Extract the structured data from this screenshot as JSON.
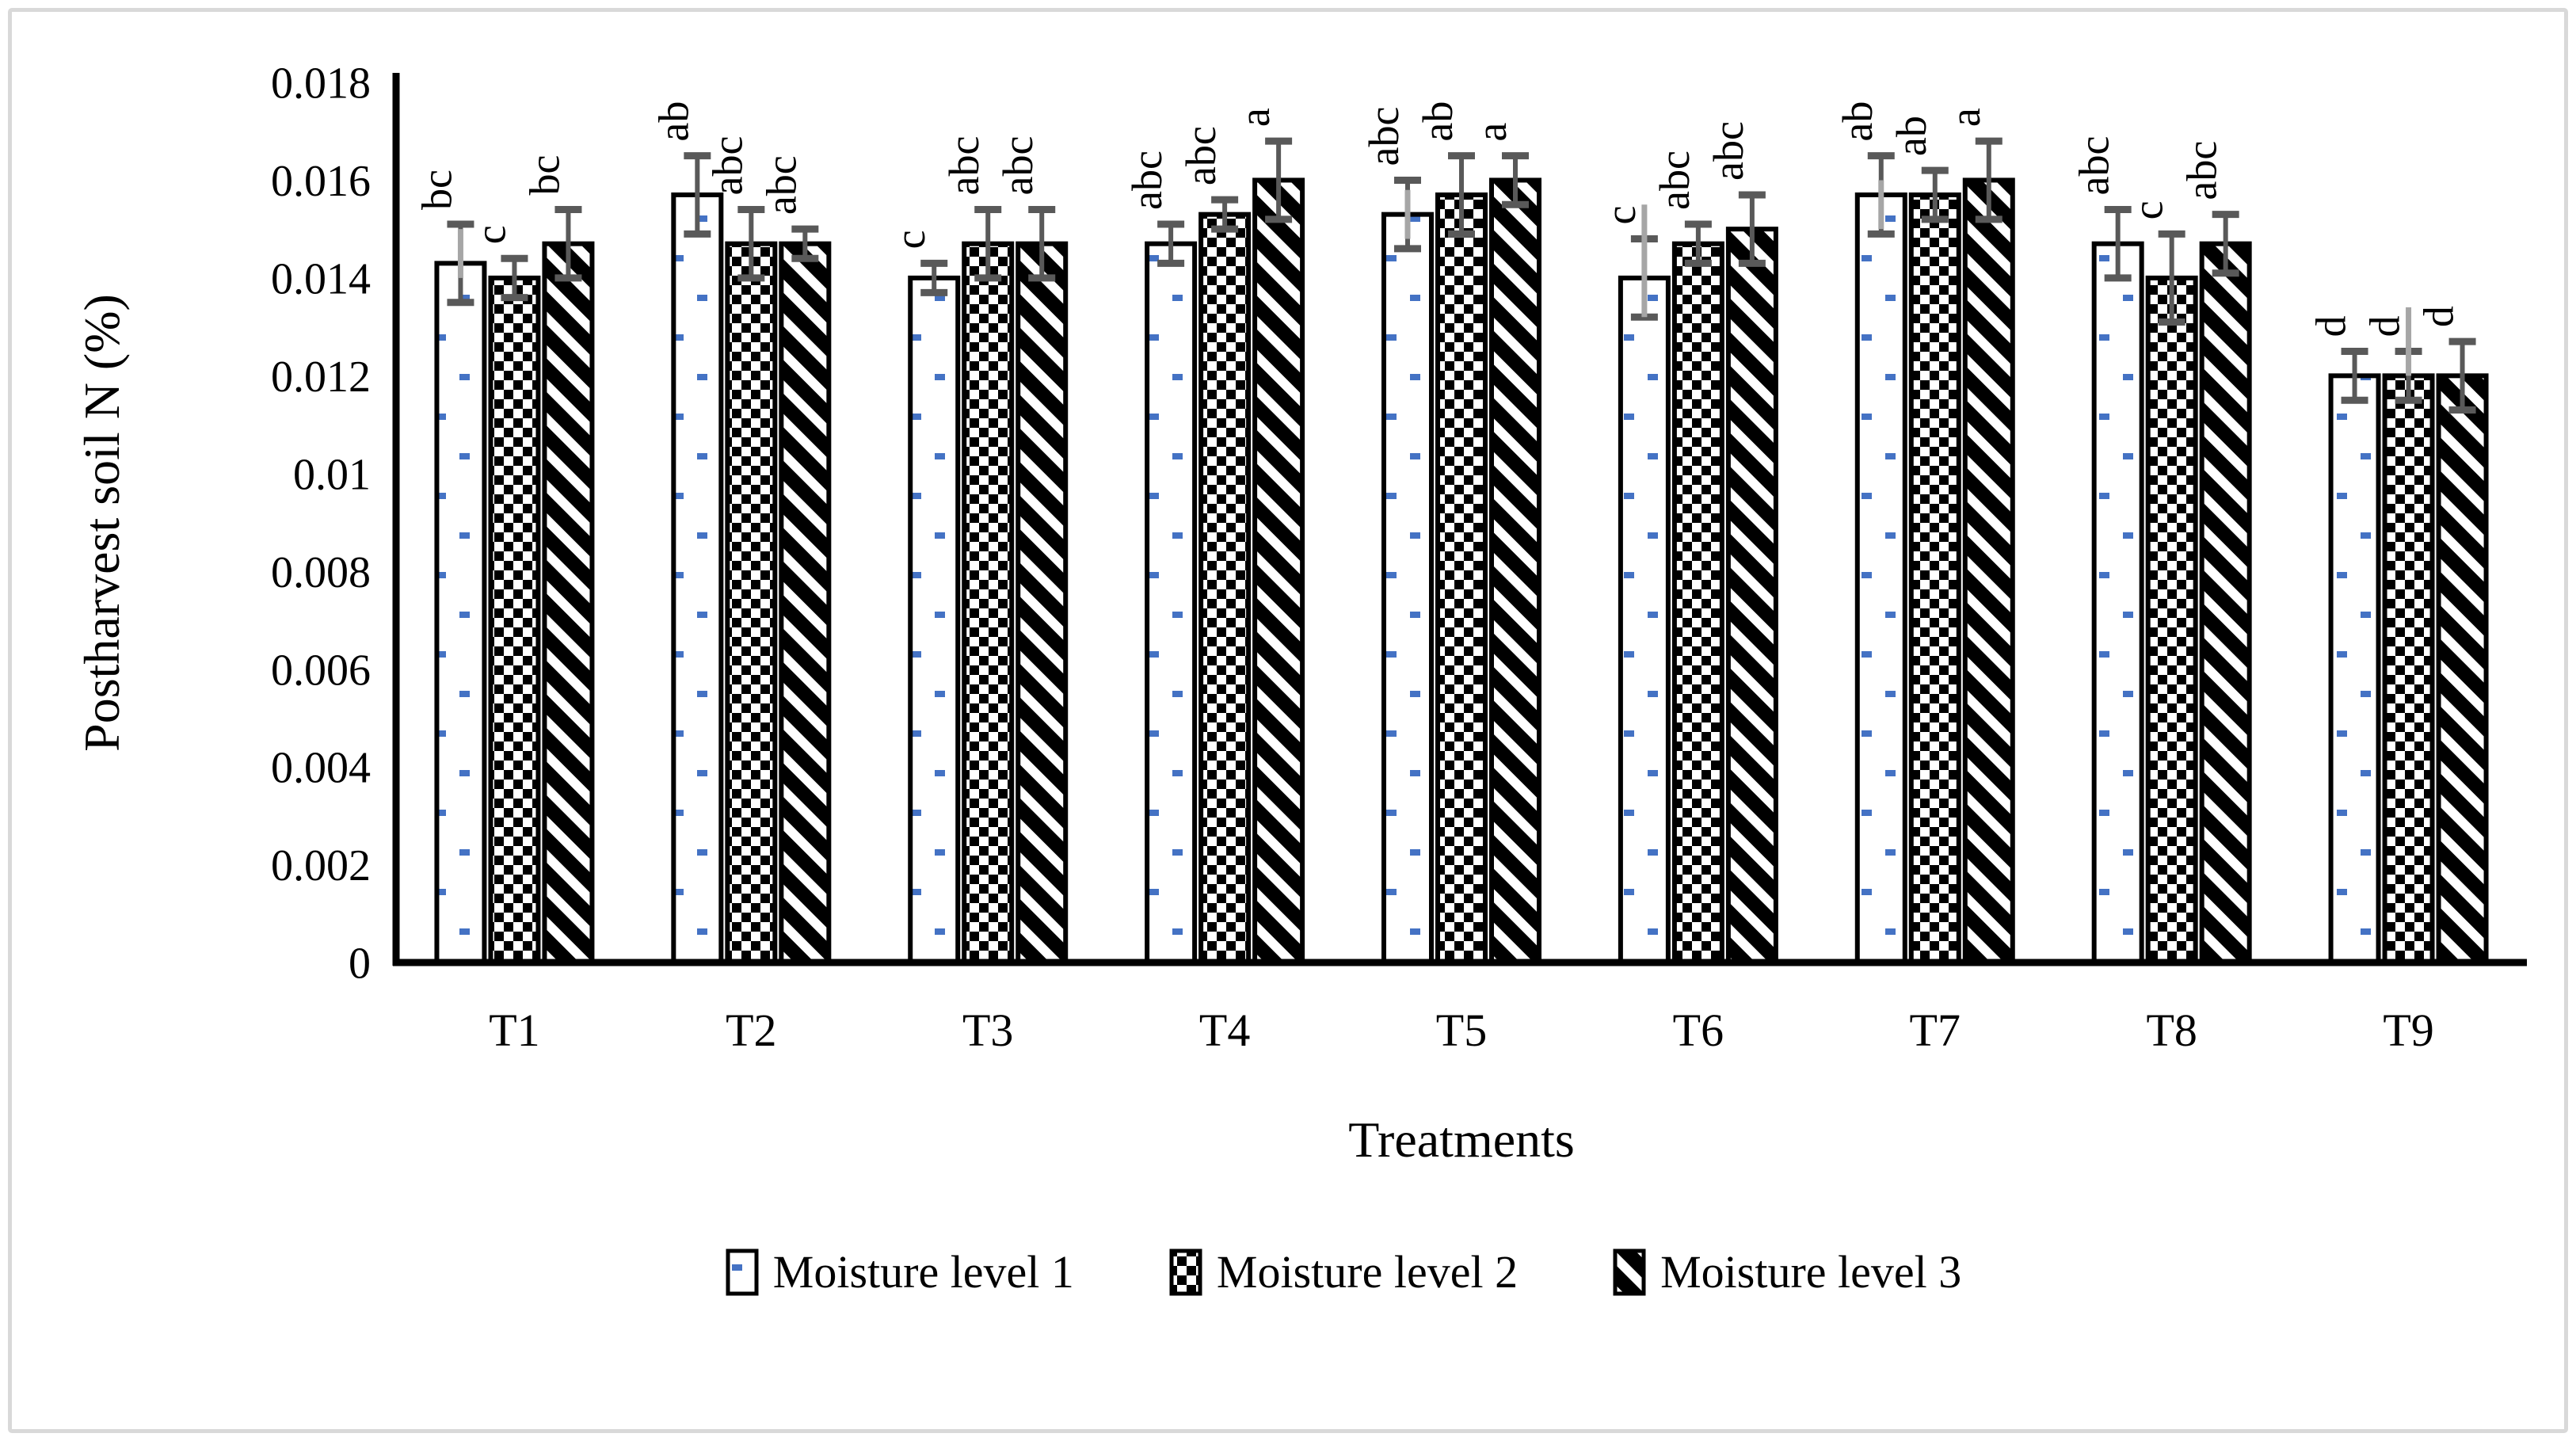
{
  "figure": {
    "background": "#ffffff",
    "border_color": "#d9d9d9"
  },
  "chart_data": {
    "type": "bar",
    "title": "",
    "ylabel": "Postharvest soil N (%)",
    "xlabel": "Treatments",
    "ylim": [
      0,
      0.018
    ],
    "ytick_step": 0.002,
    "ytick_labels": [
      "0",
      "0.002",
      "0.004",
      "0.006",
      "0.008",
      "0.01",
      "0.012",
      "0.014",
      "0.016",
      "0.018"
    ],
    "grid": false,
    "legend_position": "bottom",
    "categories": [
      "T1",
      "T2",
      "T3",
      "T4",
      "T5",
      "T6",
      "T7",
      "T8",
      "T9"
    ],
    "series": [
      {
        "name": "Moisture level 1",
        "pattern": "blue-dots",
        "values": [
          0.0143,
          0.0157,
          0.014,
          0.0147,
          0.0153,
          0.014,
          0.0157,
          0.0147,
          0.012
        ],
        "errors": [
          0.0008,
          0.0008,
          0.0003,
          0.0004,
          0.0007,
          0.0008,
          0.0008,
          0.0007,
          0.0005
        ],
        "letters": [
          "bc",
          "ab",
          "c",
          "abc",
          "abc",
          "c",
          "ab",
          "abc",
          "d"
        ]
      },
      {
        "name": "Moisture level 2",
        "pattern": "checker",
        "values": [
          0.014,
          0.0147,
          0.0147,
          0.0153,
          0.0157,
          0.0147,
          0.0157,
          0.014,
          0.012
        ],
        "errors": [
          0.0004,
          0.0007,
          0.0007,
          0.0003,
          0.0008,
          0.0004,
          0.0005,
          0.0009,
          0.0005
        ],
        "letters": [
          "c",
          "abc",
          "abc",
          "abc",
          "ab",
          "abc",
          "ab",
          "c",
          "d"
        ]
      },
      {
        "name": "Moisture level 3",
        "pattern": "diagonal",
        "values": [
          0.0147,
          0.0147,
          0.0147,
          0.016,
          0.016,
          0.015,
          0.016,
          0.0147,
          0.012
        ],
        "errors": [
          0.0007,
          0.0003,
          0.0007,
          0.0008,
          0.0005,
          0.0007,
          0.0008,
          0.0006,
          0.0007
        ],
        "letters": [
          "bc",
          "abc",
          "abc",
          "a",
          "a",
          "abc",
          "a",
          "abc",
          "d"
        ]
      }
    ],
    "light_overlays": [
      {
        "category": "T1",
        "series": 0,
        "from": 0.014,
        "to": 0.015
      },
      {
        "category": "T5",
        "series": 0,
        "from": 0.0148,
        "to": 0.0158
      },
      {
        "category": "T6",
        "series": 0,
        "from": 0.0132,
        "to": 0.0155
      },
      {
        "category": "T7",
        "series": 0,
        "from": 0.015,
        "to": 0.016
      },
      {
        "category": "T9",
        "series": 1,
        "from": 0.012,
        "to": 0.0134
      }
    ],
    "colors": {
      "bar_fill": "#ffffff",
      "bar_border": "#000000",
      "dot": "#4472c4",
      "error": "#595959",
      "error_light": "#a6a6a6",
      "axis": "#000000",
      "text": "#000000"
    }
  }
}
